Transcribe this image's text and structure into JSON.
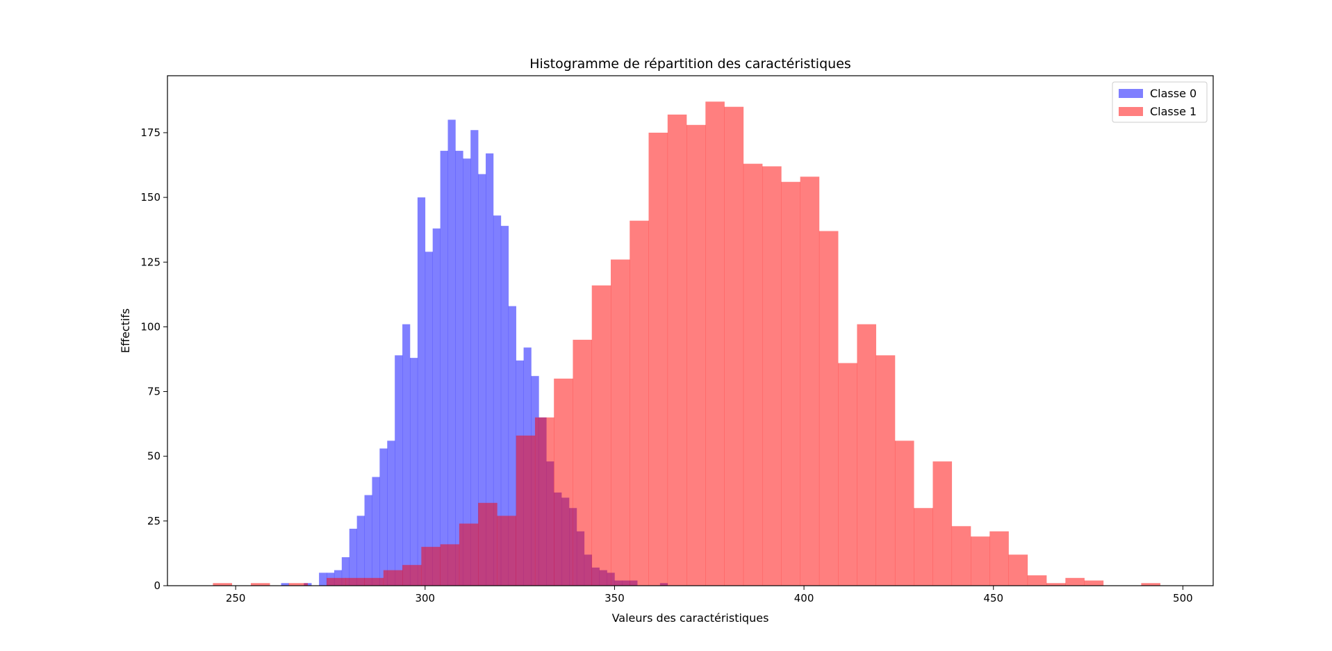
{
  "chart_data": {
    "type": "histogram",
    "title": "Histogramme de répartition des caractéristiques",
    "xlabel": "Valeurs des caractéristiques",
    "ylabel": "Effectifs",
    "xlim": [
      232,
      508
    ],
    "ylim": [
      0,
      197
    ],
    "xticks": [
      250,
      300,
      350,
      400,
      450,
      500
    ],
    "yticks": [
      0,
      25,
      50,
      75,
      100,
      125,
      150,
      175
    ],
    "grid": false,
    "legend_position": "top-right",
    "series": [
      {
        "name": "Classe 0",
        "color": "#0000ff",
        "opacity": 0.5,
        "bins": [
          [
            262,
            264,
            1
          ],
          [
            264,
            266,
            0
          ],
          [
            266,
            268,
            0
          ],
          [
            268,
            270,
            1
          ],
          [
            270,
            272,
            0
          ],
          [
            272,
            274,
            5
          ],
          [
            274,
            276,
            5
          ],
          [
            276,
            278,
            6
          ],
          [
            278,
            280,
            11
          ],
          [
            280,
            282,
            22
          ],
          [
            282,
            284,
            27
          ],
          [
            284,
            286,
            35
          ],
          [
            286,
            288,
            42
          ],
          [
            288,
            290,
            53
          ],
          [
            290,
            292,
            56
          ],
          [
            292,
            294,
            89
          ],
          [
            294,
            296,
            101
          ],
          [
            296,
            298,
            88
          ],
          [
            298,
            300,
            150
          ],
          [
            300,
            302,
            129
          ],
          [
            302,
            304,
            138
          ],
          [
            304,
            306,
            168
          ],
          [
            306,
            308,
            180
          ],
          [
            308,
            310,
            168
          ],
          [
            310,
            312,
            165
          ],
          [
            312,
            314,
            176
          ],
          [
            314,
            316,
            159
          ],
          [
            316,
            318,
            167
          ],
          [
            318,
            320,
            143
          ],
          [
            320,
            322,
            139
          ],
          [
            322,
            324,
            108
          ],
          [
            324,
            326,
            87
          ],
          [
            326,
            328,
            92
          ],
          [
            328,
            330,
            81
          ],
          [
            330,
            332,
            65
          ],
          [
            332,
            334,
            48
          ],
          [
            334,
            336,
            36
          ],
          [
            336,
            338,
            34
          ],
          [
            338,
            340,
            30
          ],
          [
            340,
            342,
            21
          ],
          [
            342,
            344,
            12
          ],
          [
            344,
            346,
            7
          ],
          [
            346,
            348,
            6
          ],
          [
            348,
            350,
            5
          ],
          [
            350,
            352,
            2
          ],
          [
            352,
            354,
            2
          ],
          [
            354,
            356,
            2
          ],
          [
            356,
            358,
            0
          ],
          [
            358,
            360,
            0
          ],
          [
            360,
            362,
            0
          ],
          [
            362,
            364,
            1
          ]
        ]
      },
      {
        "name": "Classe 1",
        "color": "#ff0000",
        "opacity": 0.5,
        "bins": [
          [
            244,
            249,
            1
          ],
          [
            249,
            254,
            0
          ],
          [
            254,
            259,
            1
          ],
          [
            259,
            264,
            0
          ],
          [
            264,
            269,
            1
          ],
          [
            269,
            274,
            0
          ],
          [
            274,
            279,
            3
          ],
          [
            279,
            284,
            3
          ],
          [
            284,
            289,
            3
          ],
          [
            289,
            294,
            6
          ],
          [
            294,
            299,
            8
          ],
          [
            299,
            304,
            15
          ],
          [
            304,
            309,
            16
          ],
          [
            309,
            314,
            24
          ],
          [
            314,
            319,
            32
          ],
          [
            319,
            324,
            27
          ],
          [
            324,
            329,
            58
          ],
          [
            329,
            334,
            65
          ],
          [
            334,
            339,
            80
          ],
          [
            339,
            344,
            95
          ],
          [
            344,
            349,
            116
          ],
          [
            349,
            354,
            126
          ],
          [
            354,
            359,
            141
          ],
          [
            359,
            364,
            175
          ],
          [
            364,
            369,
            182
          ],
          [
            369,
            374,
            178
          ],
          [
            374,
            379,
            187
          ],
          [
            379,
            384,
            185
          ],
          [
            384,
            389,
            163
          ],
          [
            389,
            394,
            162
          ],
          [
            394,
            399,
            156
          ],
          [
            399,
            404,
            158
          ],
          [
            404,
            409,
            137
          ],
          [
            409,
            414,
            86
          ],
          [
            414,
            419,
            101
          ],
          [
            419,
            424,
            89
          ],
          [
            424,
            429,
            56
          ],
          [
            429,
            434,
            30
          ],
          [
            434,
            439,
            48
          ],
          [
            439,
            444,
            23
          ],
          [
            444,
            449,
            19
          ],
          [
            449,
            454,
            21
          ],
          [
            454,
            459,
            12
          ],
          [
            459,
            464,
            4
          ],
          [
            464,
            469,
            1
          ],
          [
            469,
            474,
            3
          ],
          [
            474,
            479,
            2
          ],
          [
            479,
            484,
            0
          ],
          [
            484,
            489,
            0
          ],
          [
            489,
            494,
            1
          ]
        ]
      }
    ]
  }
}
